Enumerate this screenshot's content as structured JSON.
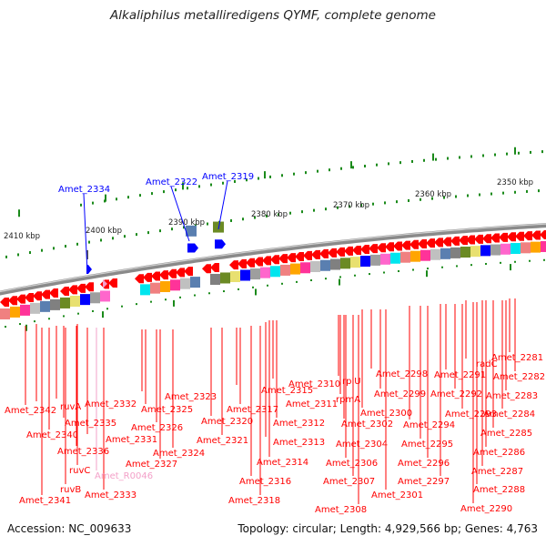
{
  "title": "Alkaliphilus metalliredigens QYMF, complete genome",
  "footer": {
    "accession": "Accession: NC_009633",
    "topology": "Topology: circular; Length: 4,929,566 bp; Genes: 4,763"
  },
  "scale": [
    {
      "label": "2410 kbp"
    },
    {
      "label": "2400 kbp"
    },
    {
      "label": "2390 kbp"
    },
    {
      "label": "2380 kbp"
    },
    {
      "label": "2370 kbp"
    },
    {
      "label": "2360 kbp"
    },
    {
      "label": "2350 kbp"
    }
  ],
  "colors": {
    "forward": "#0000ff",
    "reverse": "#ff0000",
    "rna": "#f3a0c8",
    "backbone": "#8a8a8a",
    "ticks": "#1a8a1a"
  },
  "labels_forward": [
    {
      "text": "Amet_2334"
    },
    {
      "text": "Amet_2322"
    },
    {
      "text": "Amet_2319"
    }
  ],
  "labels_reverse": [
    {
      "text": "Amet_2342"
    },
    {
      "text": "ruvA"
    },
    {
      "text": "Amet_2332"
    },
    {
      "text": "Amet_2335"
    },
    {
      "text": "Amet_2340"
    },
    {
      "text": "Amet_2331"
    },
    {
      "text": "Amet_2336"
    },
    {
      "text": "ruvC"
    },
    {
      "text": "Amet_R0046"
    },
    {
      "text": "ruvB"
    },
    {
      "text": "Amet_2341"
    },
    {
      "text": "Amet_2333"
    },
    {
      "text": "Amet_2323"
    },
    {
      "text": "Amet_2325"
    },
    {
      "text": "Amet_2326"
    },
    {
      "text": "Amet_2327"
    },
    {
      "text": "Amet_2324"
    },
    {
      "text": "Amet_2320"
    },
    {
      "text": "Amet_2321"
    },
    {
      "text": "Amet_2315"
    },
    {
      "text": "Amet_2317"
    },
    {
      "text": "Amet_2316"
    },
    {
      "text": "Amet_2318"
    },
    {
      "text": "Amet_2310"
    },
    {
      "text": "Amet_2311"
    },
    {
      "text": "Amet_2312"
    },
    {
      "text": "Amet_2313"
    },
    {
      "text": "Amet_2314"
    },
    {
      "text": "rplU"
    },
    {
      "text": "rpmA"
    },
    {
      "text": "Amet_2302"
    },
    {
      "text": "Amet_2304"
    },
    {
      "text": "Amet_2306"
    },
    {
      "text": "Amet_2307"
    },
    {
      "text": "Amet_2308"
    },
    {
      "text": "Amet_2298"
    },
    {
      "text": "Amet_2299"
    },
    {
      "text": "Amet_2300"
    },
    {
      "text": "Amet_2294"
    },
    {
      "text": "Amet_2295"
    },
    {
      "text": "Amet_2296"
    },
    {
      "text": "Amet_2297"
    },
    {
      "text": "Amet_2301"
    },
    {
      "text": "Amet_2291"
    },
    {
      "text": "Amet_2292"
    },
    {
      "text": "Amet_2293"
    },
    {
      "text": "radC"
    },
    {
      "text": "Amet_2281"
    },
    {
      "text": "Amet_2282"
    },
    {
      "text": "Amet_2283"
    },
    {
      "text": "Amet_2284"
    },
    {
      "text": "Amet_2285"
    },
    {
      "text": "Amet_2286"
    },
    {
      "text": "Amet_2287"
    },
    {
      "text": "Amet_2288"
    },
    {
      "text": "Amet_2290"
    }
  ]
}
